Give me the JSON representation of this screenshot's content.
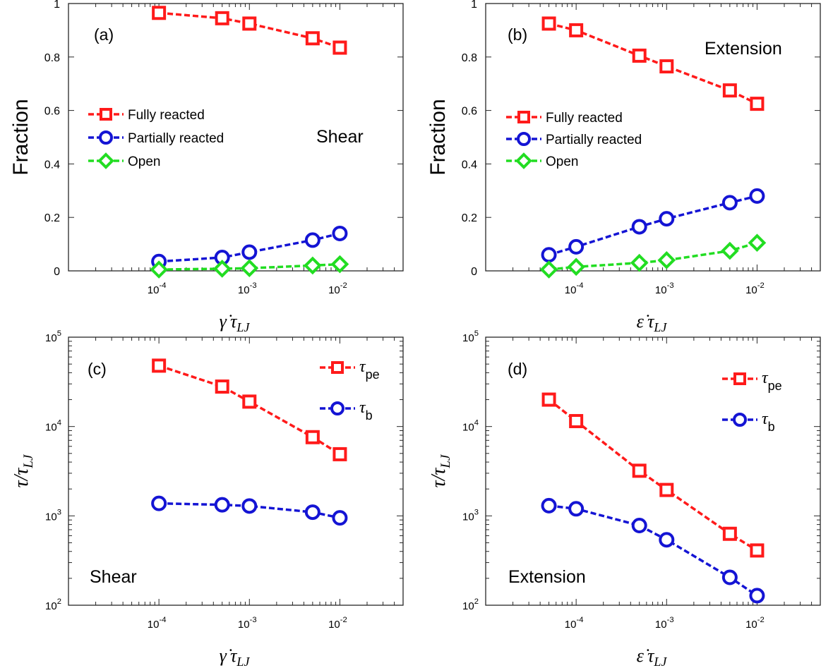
{
  "colors": {
    "fully": "#ff1a1a",
    "partial": "#1414d4",
    "open": "#22dd22"
  },
  "chart_data": [
    {
      "panel_label": "(a)",
      "annotation": "Shear",
      "type": "line",
      "x_scale": "log",
      "y_scale": "linear",
      "xlim": [
        1e-05,
        0.05
      ],
      "ylim": [
        0,
        1
      ],
      "xlabel": "γ̇ τ_LJ",
      "ylabel": "Fraction",
      "x_ticks": [
        0.0001,
        0.001,
        0.01
      ],
      "x_tick_labels": [
        [
          "10",
          "-4"
        ],
        [
          "10",
          "-3"
        ],
        [
          "10",
          "-2"
        ]
      ],
      "y_ticks": [
        0,
        0.2,
        0.4,
        0.6,
        0.8,
        1
      ],
      "y_tick_labels": [
        "0",
        "0.2",
        "0.4",
        "0.6",
        "0.8",
        "1"
      ],
      "legend_position": "center-left",
      "series": [
        {
          "name": "Fully reacted",
          "color": "#ff1a1a",
          "marker": "square",
          "x": [
            0.0001,
            0.0005,
            0.001,
            0.005,
            0.01
          ],
          "y": [
            0.965,
            0.945,
            0.925,
            0.87,
            0.835
          ]
        },
        {
          "name": "Partially reacted",
          "color": "#1414d4",
          "marker": "circle",
          "x": [
            0.0001,
            0.0005,
            0.001,
            0.005,
            0.01
          ],
          "y": [
            0.035,
            0.05,
            0.07,
            0.115,
            0.14
          ]
        },
        {
          "name": "Open",
          "color": "#22dd22",
          "marker": "diamond",
          "x": [
            0.0001,
            0.0005,
            0.001,
            0.005,
            0.01
          ],
          "y": [
            0.005,
            0.008,
            0.01,
            0.02,
            0.025
          ]
        }
      ]
    },
    {
      "panel_label": "(b)",
      "annotation": "Extension",
      "type": "line",
      "x_scale": "log",
      "y_scale": "linear",
      "xlim": [
        1e-05,
        0.05
      ],
      "ylim": [
        0,
        1
      ],
      "xlabel": "ε̇ τ_LJ",
      "ylabel": "Fraction",
      "x_ticks": [
        0.0001,
        0.001,
        0.01
      ],
      "x_tick_labels": [
        [
          "10",
          "-4"
        ],
        [
          "10",
          "-3"
        ],
        [
          "10",
          "-2"
        ]
      ],
      "y_ticks": [
        0,
        0.2,
        0.4,
        0.6,
        0.8,
        1
      ],
      "y_tick_labels": [
        "0",
        "0.2",
        "0.4",
        "0.6",
        "0.8",
        "1"
      ],
      "legend_position": "center-left",
      "series": [
        {
          "name": "Fully reacted",
          "color": "#ff1a1a",
          "marker": "square",
          "x": [
            5e-05,
            0.0001,
            0.0005,
            0.001,
            0.005,
            0.01
          ],
          "y": [
            0.925,
            0.9,
            0.805,
            0.765,
            0.675,
            0.625
          ]
        },
        {
          "name": "Partially reacted",
          "color": "#1414d4",
          "marker": "circle",
          "x": [
            5e-05,
            0.0001,
            0.0005,
            0.001,
            0.005,
            0.01
          ],
          "y": [
            0.06,
            0.09,
            0.165,
            0.195,
            0.255,
            0.28
          ]
        },
        {
          "name": "Open",
          "color": "#22dd22",
          "marker": "diamond",
          "x": [
            5e-05,
            0.0001,
            0.0005,
            0.001,
            0.005,
            0.01
          ],
          "y": [
            0.005,
            0.015,
            0.03,
            0.04,
            0.075,
            0.105
          ]
        }
      ]
    },
    {
      "panel_label": "(c)",
      "annotation": "Shear",
      "type": "line",
      "x_scale": "log",
      "y_scale": "log",
      "xlim": [
        1e-05,
        0.05
      ],
      "ylim": [
        100,
        100000
      ],
      "xlabel": "γ̇ τ_LJ",
      "ylabel": "τ/τ_LJ",
      "x_ticks": [
        0.0001,
        0.001,
        0.01
      ],
      "x_tick_labels": [
        [
          "10",
          "-4"
        ],
        [
          "10",
          "-3"
        ],
        [
          "10",
          "-2"
        ]
      ],
      "y_ticks": [
        100,
        1000,
        10000,
        100000
      ],
      "y_tick_labels": [
        [
          "10",
          "2"
        ],
        [
          "10",
          "3"
        ],
        [
          "10",
          "4"
        ],
        [
          "10",
          "5"
        ]
      ],
      "legend_position": "top-right",
      "series": [
        {
          "name": "τ_pe",
          "color": "#ff1a1a",
          "marker": "square",
          "x": [
            0.0001,
            0.0005,
            0.001,
            0.005,
            0.01
          ],
          "y": [
            48000,
            28000,
            19000,
            7600,
            4900
          ]
        },
        {
          "name": "τ_b",
          "color": "#1414d4",
          "marker": "circle",
          "x": [
            0.0001,
            0.0005,
            0.001,
            0.005,
            0.01
          ],
          "y": [
            1380,
            1330,
            1290,
            1100,
            950
          ]
        }
      ]
    },
    {
      "panel_label": "(d)",
      "annotation": "Extension",
      "type": "line",
      "x_scale": "log",
      "y_scale": "log",
      "xlim": [
        1e-05,
        0.05
      ],
      "ylim": [
        100,
        100000
      ],
      "xlabel": "ε̇ τ_LJ",
      "ylabel": "τ/τ_LJ",
      "x_ticks": [
        0.0001,
        0.001,
        0.01
      ],
      "x_tick_labels": [
        [
          "10",
          "-4"
        ],
        [
          "10",
          "-3"
        ],
        [
          "10",
          "-2"
        ]
      ],
      "y_ticks": [
        100,
        1000,
        10000,
        100000
      ],
      "y_tick_labels": [
        [
          "10",
          "2"
        ],
        [
          "10",
          "3"
        ],
        [
          "10",
          "4"
        ],
        [
          "10",
          "5"
        ]
      ],
      "legend_position": "top-right",
      "series": [
        {
          "name": "τ_pe",
          "color": "#ff1a1a",
          "marker": "square",
          "x": [
            5e-05,
            0.0001,
            0.0005,
            0.001,
            0.005,
            0.01
          ],
          "y": [
            20000,
            11500,
            3200,
            1950,
            630,
            410
          ]
        },
        {
          "name": "τ_b",
          "color": "#1414d4",
          "marker": "circle",
          "x": [
            5e-05,
            0.0001,
            0.0005,
            0.001,
            0.005,
            0.01
          ],
          "y": [
            1300,
            1200,
            780,
            540,
            205,
            128
          ]
        }
      ]
    }
  ]
}
